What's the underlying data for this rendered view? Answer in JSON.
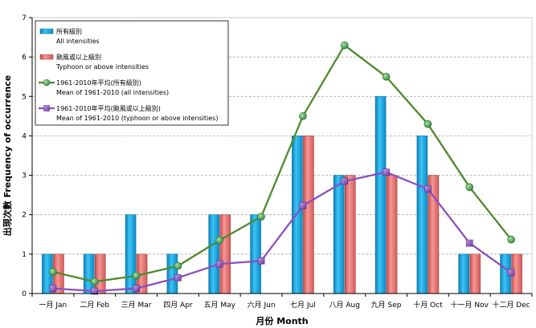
{
  "chart_data": {
    "type": "bar",
    "categories": [
      "一月 Jan",
      "二月 Feb",
      "三月 Mar",
      "四月 Apr",
      "五月 May",
      "六月 Jun",
      "七月 Jul",
      "八月 Aug",
      "九月 Sep",
      "十月 Oct",
      "十一月 Nov",
      "十二月 Dec"
    ],
    "series": [
      {
        "name": "所有級別",
        "name_en": "All intensities",
        "kind": "bar",
        "color": "#12a6e6",
        "values": [
          1,
          1,
          2,
          1,
          2,
          2,
          4,
          3,
          5,
          4,
          1,
          1
        ]
      },
      {
        "name": "颱風或以上級別",
        "name_en": "Typhoon or above intensities",
        "kind": "bar",
        "color": "#e8706e",
        "values": [
          1,
          1,
          1,
          0,
          2,
          0,
          4,
          3,
          3,
          3,
          1,
          1
        ]
      },
      {
        "name": "1961-2010年平均(所有級別)",
        "name_en": "Mean of 1961-2010 (all intensities)",
        "kind": "line",
        "color": "#4f8a2c",
        "marker": "circle",
        "values": [
          0.55,
          0.3,
          0.45,
          0.7,
          1.35,
          1.95,
          4.5,
          6.3,
          5.5,
          4.3,
          2.7,
          1.37
        ]
      },
      {
        "name": "1961-2010年平均(颱風或以上級別)",
        "name_en": "Mean of 1961-2010 (typhoon or above intensities)",
        "kind": "line",
        "color": "#8a4fc0",
        "marker": "square",
        "values": [
          0.13,
          0.06,
          0.13,
          0.4,
          0.75,
          0.83,
          2.23,
          2.85,
          3.08,
          2.65,
          1.28,
          0.53
        ]
      }
    ],
    "xlabel": "月份 Month",
    "ylabel": "出現次數 Frequency of occurrence",
    "ylim": [
      0,
      7
    ],
    "yticks": [
      0,
      1,
      2,
      3,
      4,
      5,
      6,
      7
    ],
    "grid": true,
    "legend_position": "top-left"
  }
}
